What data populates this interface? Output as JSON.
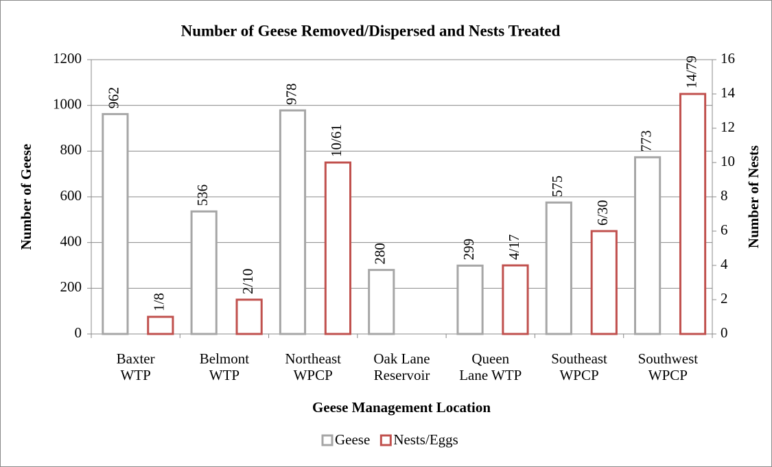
{
  "chart_data": {
    "type": "bar",
    "title": "Number of Geese Removed/Dispersed and Nests Treated",
    "x_label": "Geese Management Location",
    "y_label": "Number of Geese",
    "y2_label": "Number of Nests",
    "categories": [
      "Baxter\nWTP",
      "Belmont\nWTP",
      "Northeast\nWPCP",
      "Oak Lane\nReservoir",
      "Queen\nLane WTP",
      "Southeast\nWPCP",
      "Southwest\nWPCP"
    ],
    "series": [
      {
        "name": "Geese",
        "color": "#a6a6a6",
        "values": [
          962,
          536,
          978,
          280,
          299,
          575,
          773
        ]
      },
      {
        "name": "Nests/Eggs",
        "color": "#c0504d",
        "axis": "y2",
        "values": [
          1,
          2,
          10,
          null,
          4,
          6,
          14
        ],
        "value_labels": [
          "1/8",
          "2/10",
          "10/61",
          null,
          "4/17",
          "6/30",
          "14/79"
        ]
      }
    ],
    "ylim": [
      0,
      1200
    ],
    "yticks": [
      0,
      200,
      400,
      600,
      800,
      1000,
      1200
    ],
    "y2lim": [
      0,
      16
    ],
    "y2ticks": [
      0,
      2,
      4,
      6,
      8,
      10,
      12,
      14,
      16
    ],
    "grid": true,
    "legend": "bottom"
  }
}
